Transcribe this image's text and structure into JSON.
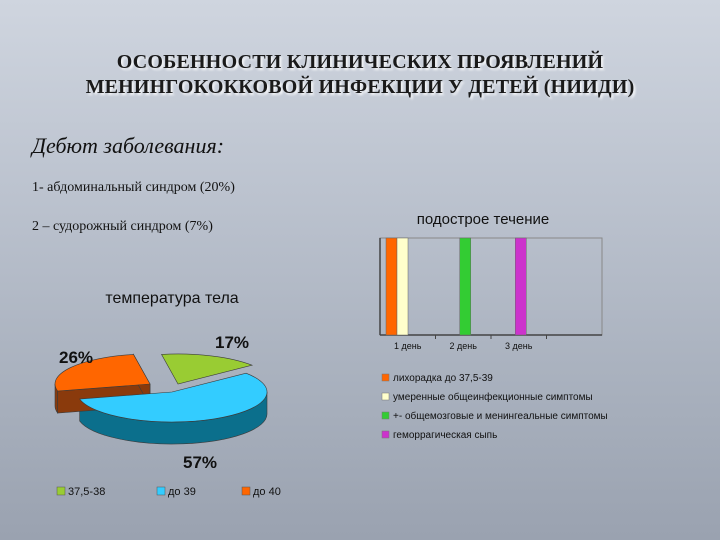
{
  "slide": {
    "title_line1": "ОСОБЕННОСТИ КЛИНИЧЕСКИХ ПРОЯВЛЕНИЙ",
    "title_line2": "МЕНИНГОКОККОВОЙ ИНФЕКЦИИ У ДЕТЕЙ (НИИДИ)",
    "subtitle": "Дебют заболевания:",
    "line1": "1- абдоминальный синдром (20%)",
    "line2": "2 – судорожный синдром (7%)"
  },
  "chart_data": [
    {
      "type": "pie",
      "title": "температура тела",
      "slices": [
        {
          "label": "37,5-38",
          "value": 17,
          "display": "17%",
          "color": "#99cc33",
          "dark": "#5a7a1a"
        },
        {
          "label": "до 39",
          "value": 57,
          "display": "57%",
          "color": "#33ccff",
          "dark": "#0b6f8c"
        },
        {
          "label": "до 40",
          "value": 26,
          "display": "26%",
          "color": "#ff6600",
          "dark": "#8a3a0c"
        }
      ],
      "legend_position": "bottom"
    },
    {
      "type": "bar",
      "title": "подострое течение",
      "categories": [
        "1 день",
        "2 день",
        "3 день"
      ],
      "series": [
        {
          "name": "лихорадка до 37,5-39",
          "color": "#ff6600",
          "values": [
            1,
            0,
            0
          ]
        },
        {
          "name": "умеренные общеинфекционные симптомы",
          "color": "#ffffcc",
          "values": [
            1,
            0,
            0
          ]
        },
        {
          "name": "+- общемозговые и менингеальные симптомы",
          "color": "#33cc33",
          "values": [
            0,
            1,
            0
          ]
        },
        {
          "name": "геморрагическая сыпь",
          "color": "#cc33cc",
          "values": [
            0,
            0,
            1
          ]
        }
      ],
      "legend_position": "bottom"
    }
  ]
}
